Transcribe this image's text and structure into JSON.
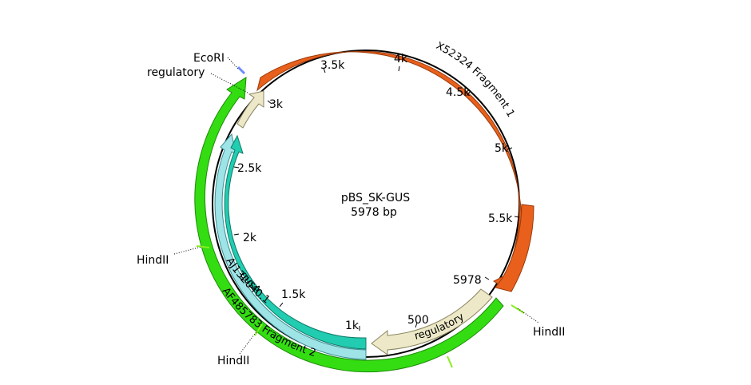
{
  "plasmid": {
    "name": "pBS_SK-GUS",
    "length_text": "5978 bp",
    "length_bp": 5978
  },
  "ticks": [
    {
      "bp": 500,
      "label": "500"
    },
    {
      "bp": 1000,
      "label": "1k"
    },
    {
      "bp": 1500,
      "label": "1.5k"
    },
    {
      "bp": 2000,
      "label": "2k"
    },
    {
      "bp": 2500,
      "label": "2.5k"
    },
    {
      "bp": 3000,
      "label": "3k"
    },
    {
      "bp": 3500,
      "label": "3.5k"
    },
    {
      "bp": 4000,
      "label": "4k"
    },
    {
      "bp": 4500,
      "label": "4.5k"
    },
    {
      "bp": 5000,
      "label": "5k"
    },
    {
      "bp": 5500,
      "label": "5.5k"
    },
    {
      "bp": 5978,
      "label": "5978"
    }
  ],
  "features": [
    {
      "name": "X52324 Fragment 1",
      "color": "#e8601c",
      "stroke": "#9a3a0a"
    },
    {
      "name": "regulatory",
      "color": "#ede9c8",
      "stroke": "#8a8560"
    },
    {
      "name": "AF485783 Fragment 2",
      "color": "#33dd11",
      "stroke": "#1d8a08"
    },
    {
      "name": "regulatory",
      "color": "#ede9c8",
      "stroke": "#8a8560"
    },
    {
      "name": "AJ132040.1",
      "color": "#9ee3e6",
      "stroke": "#3c8f95"
    },
    {
      "name": "gusA",
      "color": "#22ccb0",
      "stroke": "#0d7a68"
    }
  ],
  "sites": [
    {
      "name": "EcoRI",
      "color": "#6b8cff"
    },
    {
      "name": "HindII",
      "color": "#88ee22"
    },
    {
      "name": "HindII",
      "color": "#88ee22"
    },
    {
      "name": "HindII",
      "color": "#88ee22"
    }
  ]
}
